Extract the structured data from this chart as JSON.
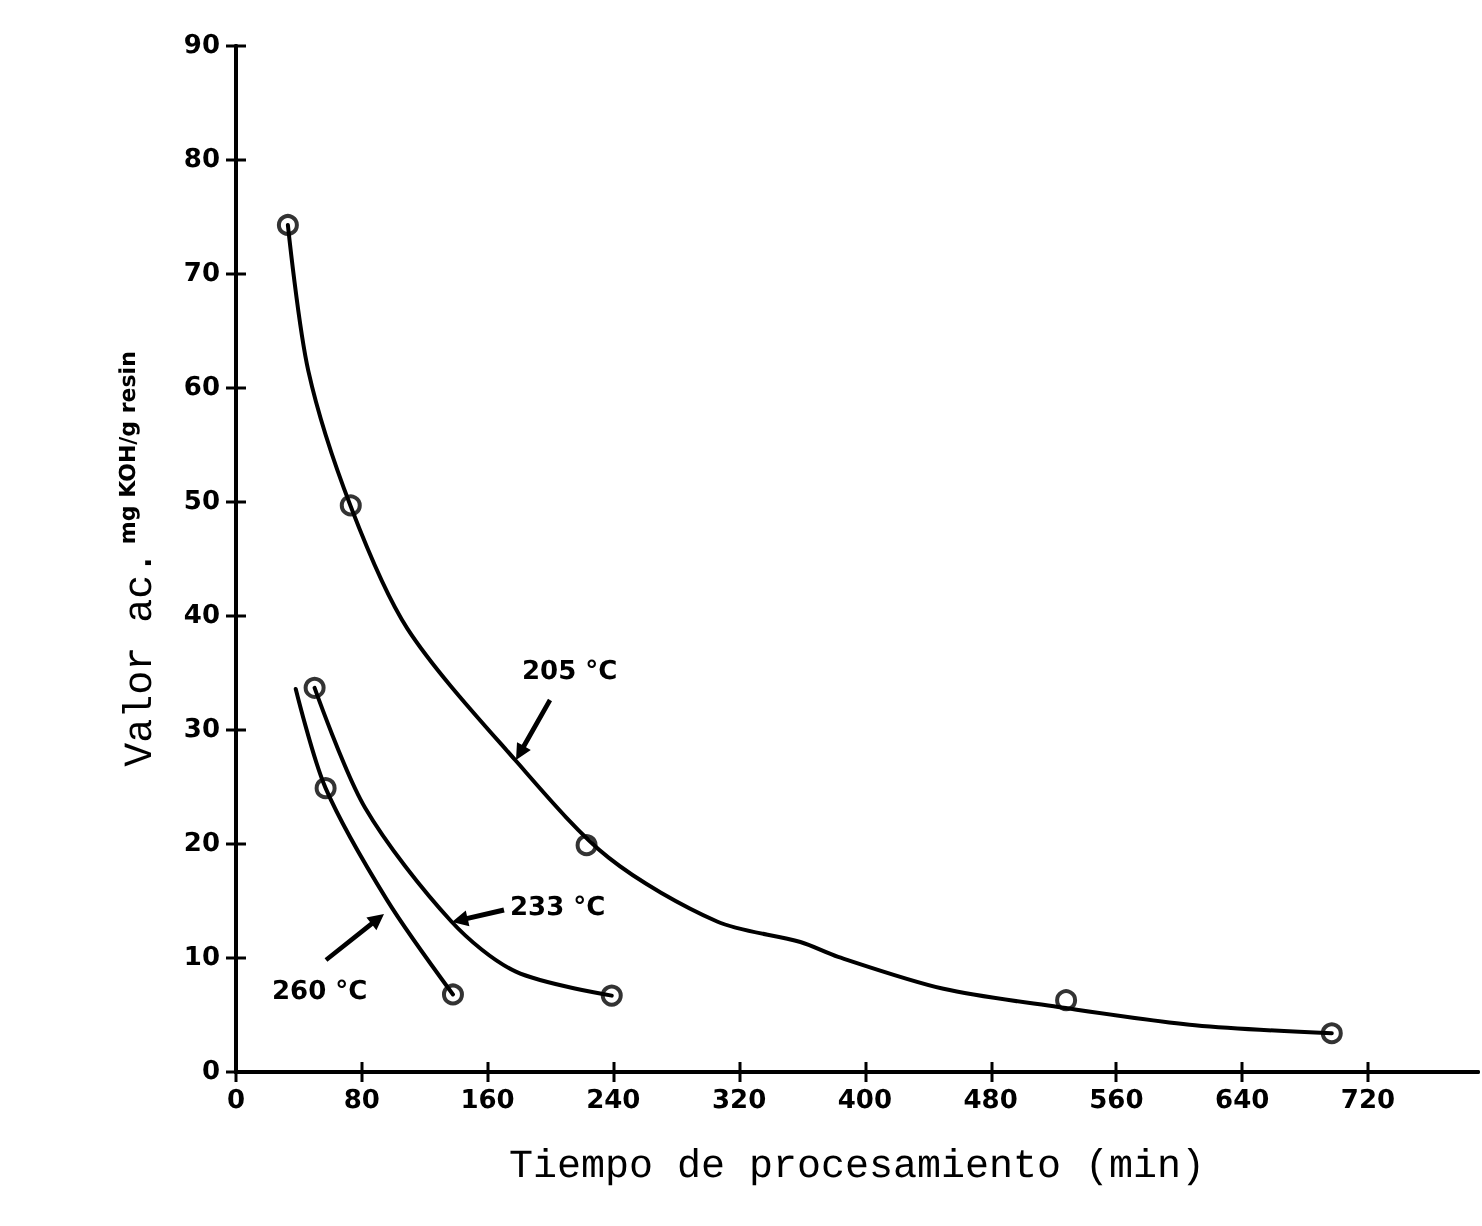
{
  "chart_data": {
    "type": "scatter",
    "xlabel": "Tiempo de procesamiento (min)",
    "ylabel": "Valor ac.$^{mg KOH/g resin}$",
    "xlim": [
      0,
      790
    ],
    "xticks": [
      0,
      80,
      160,
      240,
      320,
      400,
      480,
      560,
      640,
      720
    ],
    "ylim": [
      0,
      90
    ],
    "yticks": [
      0,
      10,
      20,
      30,
      40,
      50,
      60,
      70,
      80,
      90
    ],
    "grid": false,
    "marker": "circle",
    "series": [
      {
        "color": "#000000",
        "x": [
          33,
          73,
          223,
          528,
          697
        ],
        "values": [
          74.3,
          49.7,
          19.9,
          6.3,
          3.4
        ]
      },
      {
        "color": "#000000",
        "x": [
          50,
          239
        ],
        "values": [
          33.7,
          6.7
        ]
      },
      {
        "color": "#000000",
        "x": [
          57,
          138
        ],
        "values": [
          24.9,
          6.8
        ]
      },
      {
        "type": "line",
        "marker": "none",
        "color": "#000000",
        "x": [
          33,
          46,
          73,
          109,
          178,
          237,
          306,
          359,
          383,
          450,
          523,
          610,
          697
        ],
        "values": [
          74.3,
          61.5,
          49.6,
          38.9,
          27.3,
          18.8,
          13.2,
          11.4,
          10.1,
          7.3,
          5.7,
          4.1,
          3.4
        ]
      },
      {
        "type": "line",
        "marker": "none",
        "color": "#000000",
        "x": [
          50,
          82,
          137,
          178,
          239
        ],
        "values": [
          33.7,
          23.2,
          13.2,
          8.8,
          6.7
        ]
      },
      {
        "type": "line",
        "marker": "none",
        "color": "#000000",
        "x": [
          38,
          57,
          96,
          138
        ],
        "values": [
          33.6,
          24.9,
          15.1,
          6.8
        ]
      }
    ],
    "annotations": [
      "205 °C",
      "233 °C",
      "260 °C"
    ]
  }
}
